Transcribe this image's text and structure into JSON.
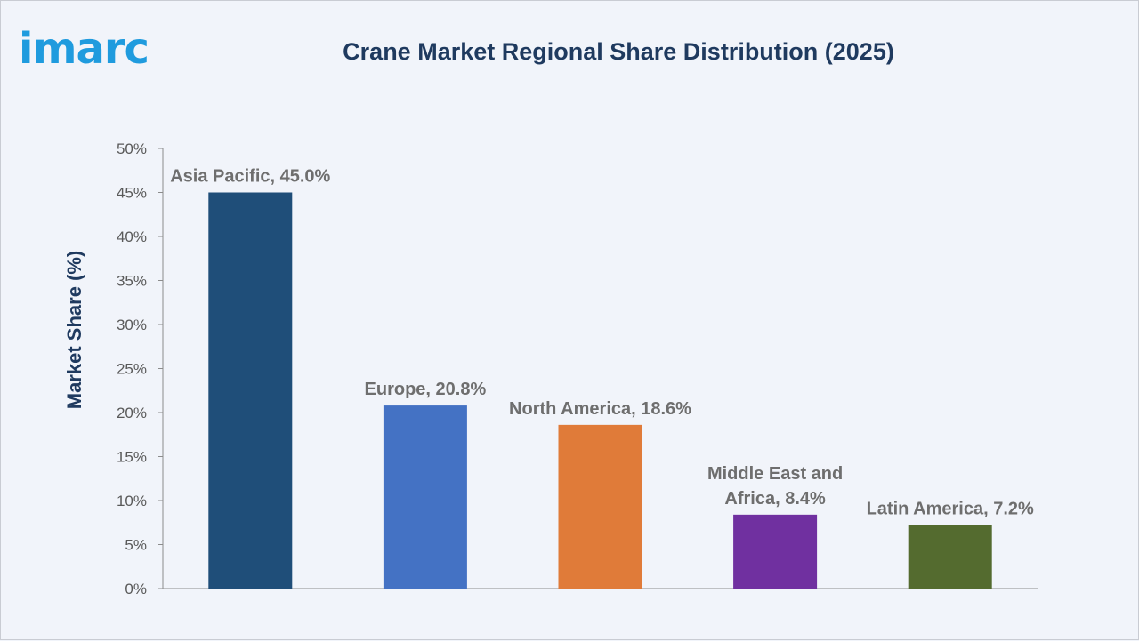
{
  "brand": {
    "logo_text": "imarc"
  },
  "chart_data": {
    "type": "bar",
    "title": "Crane Market Regional Share Distribution (2025)",
    "xlabel": "",
    "ylabel": "Market Share (%)",
    "ylim": [
      0,
      50
    ],
    "yticks": [
      "0%",
      "5%",
      "10%",
      "15%",
      "20%",
      "25%",
      "30%",
      "35%",
      "40%",
      "45%",
      "50%"
    ],
    "categories": [
      "Asia Pacific",
      "Europe",
      "North America",
      "Middle East and Africa",
      "Latin America"
    ],
    "values": [
      45.0,
      20.8,
      18.6,
      8.4,
      7.2
    ],
    "data_labels": [
      [
        "Asia Pacific, 45.0%"
      ],
      [
        "Europe, 20.8%"
      ],
      [
        "North America, 18.6%"
      ],
      [
        "Middle East and",
        "Africa, 8.4%"
      ],
      [
        "Latin America, 7.2%"
      ]
    ],
    "colors": [
      "#1f4e79",
      "#4472c4",
      "#e07b39",
      "#7030a0",
      "#546b2f"
    ],
    "grid": false,
    "legend": "none"
  }
}
